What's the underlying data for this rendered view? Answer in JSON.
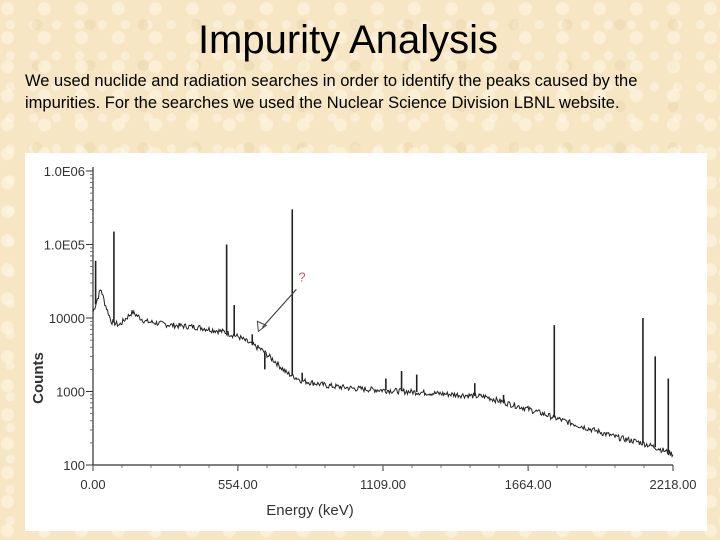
{
  "slide": {
    "title": "Impurity Analysis",
    "body": "We used nuclide and radiation searches in order to identify the peaks caused by the impurities. For the searches we used the Nuclear Science Division LBNL website."
  },
  "colors": {
    "background": "#f6e6c4",
    "trace": "#222222",
    "annotation": "#d9506e"
  },
  "chart_data": {
    "type": "line",
    "title": "",
    "xlabel": "Energy (keV)",
    "ylabel": "Counts",
    "xlim": [
      0,
      2218
    ],
    "ylim": [
      100,
      1000000
    ],
    "yscale": "log",
    "x_ticks": [
      0,
      554,
      1109,
      1664,
      2218
    ],
    "x_tick_labels": [
      "0.00",
      "554.00",
      "1109.00",
      "1664.00",
      "2218.00"
    ],
    "y_ticks": [
      1000000,
      100000,
      10000,
      1000,
      100
    ],
    "y_tick_labels": [
      "1.0E06",
      "1.0E05",
      "10000",
      "1000",
      "100"
    ],
    "grid": false,
    "annotation": {
      "text": "?",
      "x": 640,
      "y": 9000
    },
    "baseline": [
      [
        0,
        12000
      ],
      [
        30,
        25000
      ],
      [
        45,
        16000
      ],
      [
        70,
        9000
      ],
      [
        100,
        8000
      ],
      [
        150,
        12000
      ],
      [
        200,
        9000
      ],
      [
        300,
        8000
      ],
      [
        400,
        7500
      ],
      [
        500,
        6500
      ],
      [
        560,
        5500
      ],
      [
        600,
        4500
      ],
      [
        640,
        3800
      ],
      [
        700,
        2500
      ],
      [
        740,
        1800
      ],
      [
        800,
        1400
      ],
      [
        900,
        1200
      ],
      [
        1000,
        1100
      ],
      [
        1100,
        1050
      ],
      [
        1200,
        1000
      ],
      [
        1300,
        950
      ],
      [
        1400,
        900
      ],
      [
        1500,
        850
      ],
      [
        1580,
        700
      ],
      [
        1650,
        600
      ],
      [
        1720,
        500
      ],
      [
        1800,
        400
      ],
      [
        1900,
        310
      ],
      [
        2000,
        240
      ],
      [
        2100,
        200
      ],
      [
        2160,
        170
      ],
      [
        2218,
        140
      ]
    ],
    "peaks": [
      {
        "x": 10,
        "counts": 60000
      },
      {
        "x": 80,
        "counts": 150000
      },
      {
        "x": 511,
        "counts": 100000
      },
      {
        "x": 540,
        "counts": 15000
      },
      {
        "x": 609,
        "counts": 6000
      },
      {
        "x": 657,
        "counts": 2000
      },
      {
        "x": 762,
        "counts": 300000
      },
      {
        "x": 800,
        "counts": 1800
      },
      {
        "x": 1120,
        "counts": 1500
      },
      {
        "x": 1180,
        "counts": 1900
      },
      {
        "x": 1238,
        "counts": 1700
      },
      {
        "x": 1460,
        "counts": 1300
      },
      {
        "x": 1570,
        "counts": 900
      },
      {
        "x": 1764,
        "counts": 8000
      },
      {
        "x": 2103,
        "counts": 10000
      },
      {
        "x": 2150,
        "counts": 3000
      },
      {
        "x": 2200,
        "counts": 1500
      }
    ]
  }
}
